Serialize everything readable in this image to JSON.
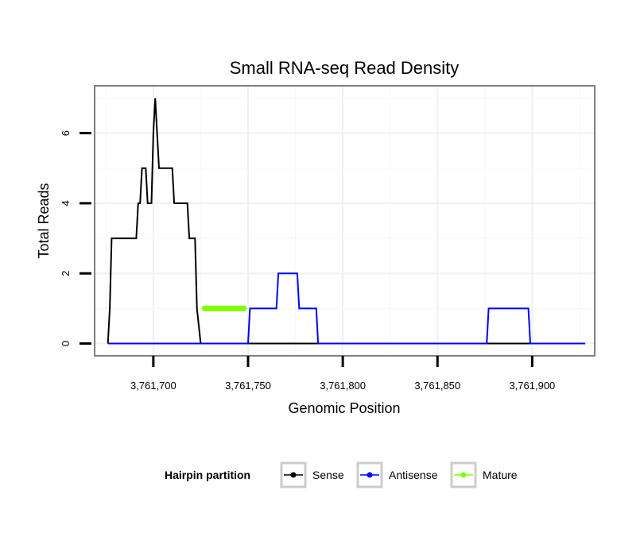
{
  "chart_data": {
    "type": "line",
    "title": "Small RNA-seq Read Density",
    "xlabel": "Genomic Position",
    "ylabel": "Total Reads",
    "xlim": [
      3761669,
      3761933
    ],
    "ylim": [
      -0.35,
      7.35
    ],
    "x_ticks": [
      3761700,
      3761750,
      3761800,
      3761850,
      3761900
    ],
    "x_tick_labels": [
      "3,761,700",
      "3,761,750",
      "3,761,800",
      "3,761,850",
      "3,761,900"
    ],
    "y_ticks": [
      0,
      2,
      4,
      6
    ],
    "y_tick_labels": [
      "0",
      "2",
      "4",
      "6"
    ],
    "grid": true,
    "legend": {
      "title": "Hairpin partition",
      "position": "bottom",
      "entries": [
        {
          "name": "Sense",
          "color": "#000000"
        },
        {
          "name": "Antisense",
          "color": "#0000ff"
        },
        {
          "name": "Mature",
          "color": "#7fff00"
        }
      ]
    },
    "series": [
      {
        "name": "Sense",
        "color": "#000000",
        "x": [
          3761676,
          3761677,
          3761678,
          3761691,
          3761692,
          3761693,
          3761694,
          3761696,
          3761697,
          3761699,
          3761700,
          3761701,
          3761702,
          3761703,
          3761710,
          3761711,
          3761718,
          3761719,
          3761722,
          3761723,
          3761725,
          3761726,
          3761727,
          3761928
        ],
        "y": [
          0,
          1,
          3,
          3,
          4,
          4,
          5,
          5,
          4,
          4,
          6,
          7,
          6,
          5,
          5,
          4,
          4,
          3,
          3,
          1,
          0,
          0,
          0,
          0
        ]
      },
      {
        "name": "Antisense",
        "color": "#0000ff",
        "x": [
          3761676,
          3761749,
          3761750,
          3761751,
          3761765,
          3761766,
          3761767,
          3761776,
          3761777,
          3761778,
          3761786,
          3761787,
          3761788,
          3761876,
          3761877,
          3761878,
          3761898,
          3761899,
          3761900,
          3761928
        ],
        "y": [
          0,
          0,
          0,
          1,
          1,
          2,
          2,
          2,
          1,
          1,
          1,
          0,
          0,
          0,
          1,
          1,
          1,
          0,
          0,
          0
        ],
        "x_note": "step series"
      },
      {
        "name": "Mature",
        "color": "#7fff00",
        "x": [
          3761727,
          3761748
        ],
        "y": [
          1,
          1
        ]
      }
    ]
  }
}
